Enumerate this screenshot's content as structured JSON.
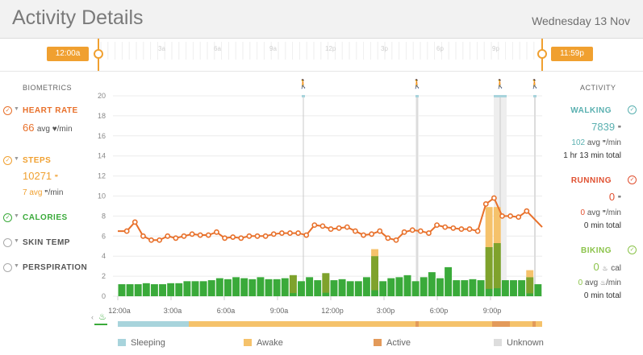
{
  "header": {
    "title": "Activity Details",
    "date": "Wednesday 13 Nov"
  },
  "timeline": {
    "labels": [
      "3a",
      "6a",
      "9a",
      "12p",
      "3p",
      "6p",
      "9p"
    ],
    "start_handle": "12:00a",
    "end_handle": "11:59p"
  },
  "biometrics": {
    "heading": "BIOMETRICS",
    "heart_rate": {
      "name": "HEART RATE",
      "value": "66",
      "unit": "avg ♥/min"
    },
    "steps": {
      "name": "STEPS",
      "value": "10271",
      "avg": "7 avg",
      "avg_unit": "/min"
    },
    "calories": {
      "name": "CALORIES"
    },
    "skin_temp": {
      "name": "SKIN TEMP"
    },
    "perspiration": {
      "name": "PERSPIRATION"
    }
  },
  "activity": {
    "heading": "ACTIVITY",
    "walking": {
      "name": "WALKING",
      "value": "7839",
      "avg": "102",
      "avg_unit": "avg",
      "per_min": "/min",
      "total": "1 hr 13 min total"
    },
    "running": {
      "name": "RUNNING",
      "value": "0",
      "avg": "0",
      "avg_unit": "avg",
      "per_min": "/min",
      "total": "0 min total"
    },
    "biking": {
      "name": "BIKING",
      "value": "0",
      "value_unit": "cal",
      "avg": "0",
      "avg_unit": "avg",
      "per_min": "/min",
      "total": "0 min total"
    }
  },
  "colors": {
    "heart": "#e8702a",
    "steps": "#f0a030",
    "calories": "#3aaa3a",
    "walking": "#5ab0b0",
    "running": "#e05030",
    "biking": "#8bc34a",
    "sleeping": "#a8d4dc",
    "awake": "#f5c26b",
    "active": "#e39a5a",
    "unknown": "#dddddd"
  },
  "legend": [
    "Sleeping",
    "Awake",
    "Active",
    "Unknown"
  ],
  "chart_data": {
    "type": "bar",
    "x_tick_labels": [
      "12:00a",
      "3:00a",
      "6:00a",
      "9:00a",
      "12:00p",
      "3:00p",
      "6:00p",
      "9:00p"
    ],
    "y_ticks": [
      0,
      2,
      4,
      6,
      8,
      10,
      12,
      14,
      16,
      18,
      20
    ],
    "ylim": [
      0,
      20
    ],
    "series": [
      {
        "name": "HEART RATE",
        "type": "line",
        "values": [
          6.5,
          6.5,
          7.4,
          6,
          5.6,
          5.6,
          6,
          5.8,
          6,
          6.2,
          6.1,
          6.1,
          6.4,
          5.8,
          5.9,
          5.8,
          6,
          6,
          6,
          6.2,
          6.3,
          6.3,
          6.3,
          6.1,
          7.1,
          7,
          6.7,
          6.8,
          6.9,
          6.5,
          6.1,
          6.2,
          6.5,
          5.8,
          5.6,
          6.4,
          6.6,
          6.5,
          6.3,
          7.1,
          6.9,
          6.8,
          6.7,
          6.7,
          6.5,
          9.2,
          9.8,
          8,
          8,
          7.9,
          8.5,
          6.9
        ]
      },
      {
        "name": "CALORIES",
        "type": "bar",
        "values": [
          1.2,
          1.2,
          1.2,
          1.3,
          1.2,
          1.2,
          1.3,
          1.3,
          1.5,
          1.5,
          1.5,
          1.6,
          1.8,
          1.7,
          1.9,
          1.8,
          1.7,
          1.9,
          1.7,
          1.7,
          1.8,
          2.1,
          1.5,
          1.9,
          1.6,
          2.3,
          1.6,
          1.7,
          1.5,
          1.5,
          1.9,
          4,
          1.5,
          1.8,
          1.9,
          2.1,
          1.5,
          1.9,
          2.4,
          1.8,
          2.9,
          1.6,
          1.6,
          1.7,
          1.6,
          4.9,
          5.3,
          1.6,
          1.6,
          1.6,
          1.9,
          1.2
        ]
      },
      {
        "name": "STEPS",
        "type": "bar",
        "values": [
          0,
          0,
          0,
          0,
          0,
          0,
          0,
          0,
          0,
          0,
          0,
          0,
          0,
          0,
          0,
          0,
          0,
          0,
          0,
          0,
          0,
          0.4,
          0,
          0,
          0,
          0.4,
          0,
          0,
          0,
          0,
          0,
          4.7,
          0,
          0,
          0,
          0,
          0,
          0,
          0,
          0,
          0,
          0,
          0,
          0,
          0,
          8.9,
          8.9,
          0,
          0,
          0,
          2.6,
          0
        ]
      }
    ],
    "band": {
      "categories": [
        "Sleeping",
        "Awake",
        "Active",
        "Unknown"
      ]
    }
  }
}
